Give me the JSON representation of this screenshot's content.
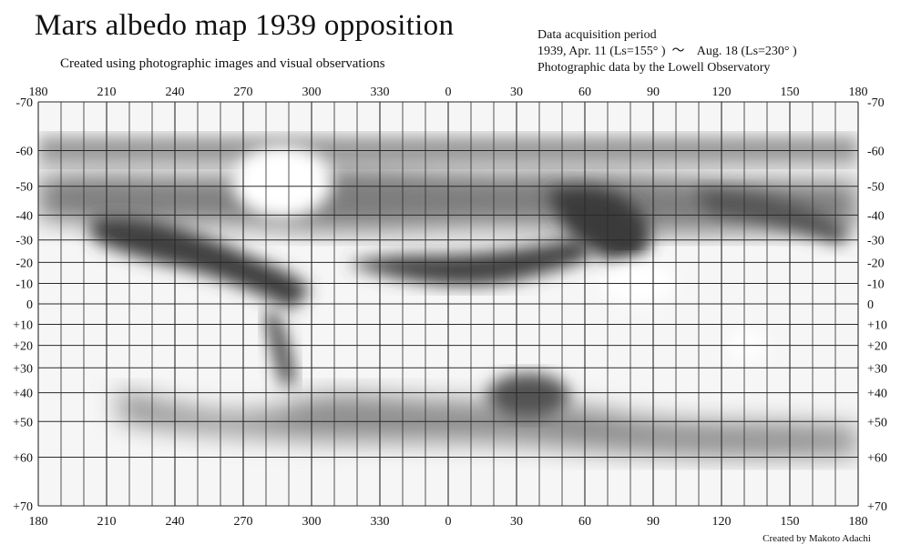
{
  "title": "Mars albedo map 1939 opposition",
  "subtitle": "Created using photographic images and visual observations",
  "info": {
    "line1": "Data acquisition period",
    "line2": "1939, Apr. 11 (Ls=155° )  ～    Aug. 18 (Ls=230° )",
    "line3": "Photographic data by the Lowell Observatory"
  },
  "credit": "Created by Makoto Adachi",
  "longitudes": [
    "180",
    "210",
    "240",
    "270",
    "300",
    "330",
    "0",
    "30",
    "60",
    "90",
    "120",
    "150",
    "180"
  ],
  "latitudes": [
    "-70",
    "-60",
    "-50",
    "-40",
    "-30",
    "-20",
    "-10",
    "0",
    "+10",
    "+20",
    "+30",
    "+40",
    "+50",
    "+60",
    "+70"
  ],
  "latitude_values": [
    -70,
    -60,
    -50,
    -40,
    -30,
    -20,
    -10,
    0,
    10,
    20,
    30,
    40,
    50,
    60,
    70
  ],
  "colors": {
    "paper": "#ffffff",
    "grid": "#2a2a2a",
    "dark": "#3a3a3a",
    "mid": "#8a8a8a",
    "light": "#c9c9c9"
  }
}
